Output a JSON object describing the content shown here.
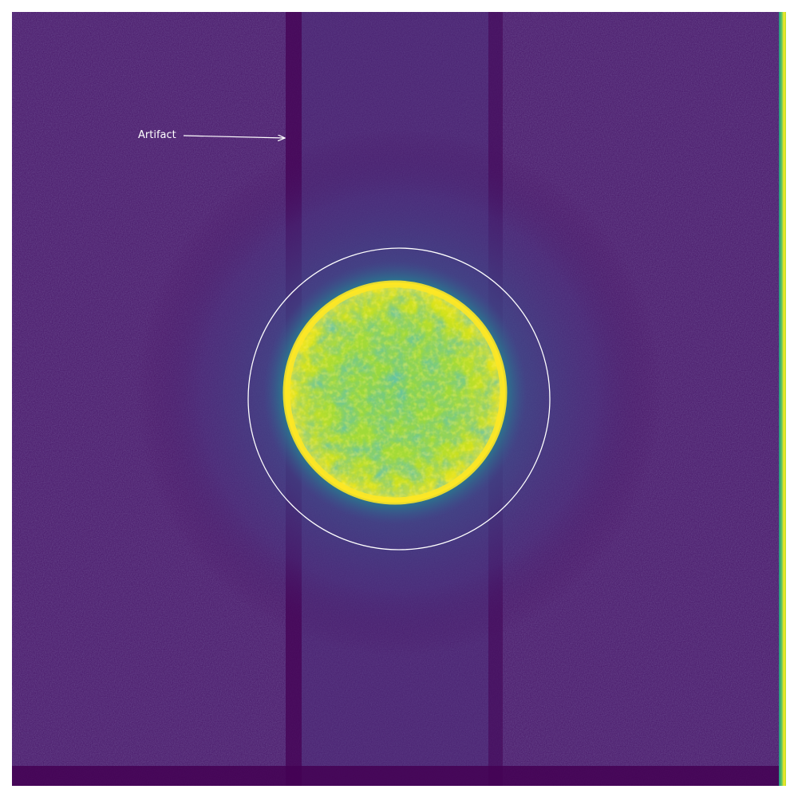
{
  "image": {
    "annotation": {
      "label": "Artifact"
    },
    "colors": {
      "page_background": "#ffffff",
      "colormap_dark": "#440154",
      "colormap_mid_low": "#3b528b",
      "colormap_mid": "#21918c",
      "colormap_mid_high": "#5ec962",
      "colormap_bright": "#fde725",
      "overlay": "#ffffff"
    }
  }
}
